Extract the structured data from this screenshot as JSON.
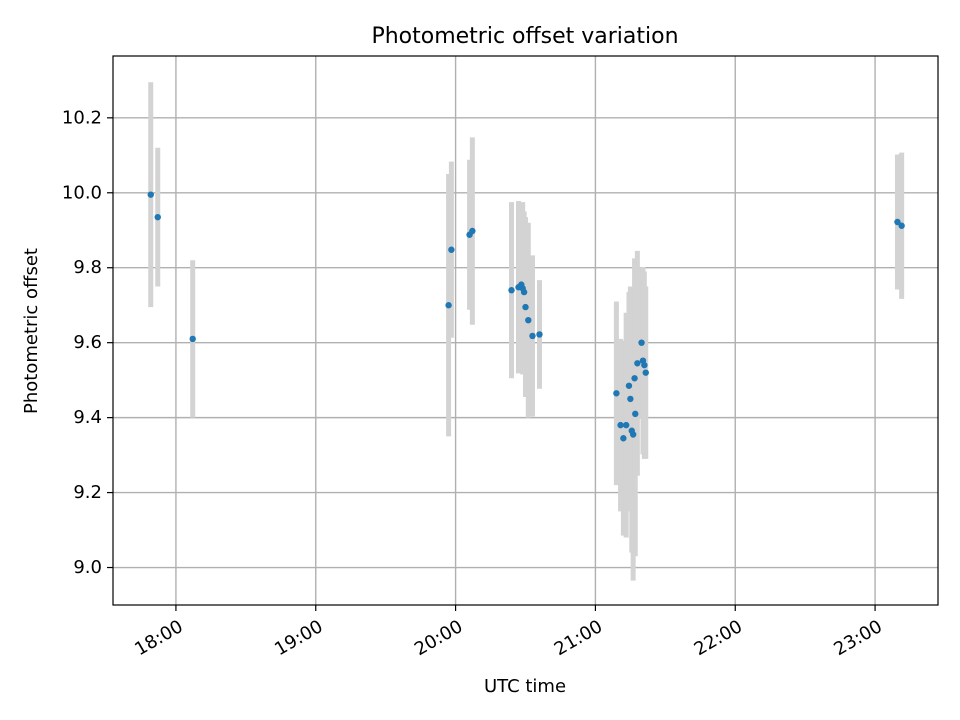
{
  "chart_data": {
    "type": "scatter",
    "title": "Photometric offset variation",
    "xlabel": "UTC time",
    "ylabel": "Photometric offset",
    "x_unit": "hours UTC",
    "xlim": [
      17.55,
      23.45
    ],
    "ylim": [
      8.9,
      10.365
    ],
    "x_ticks": [
      {
        "value": 18,
        "label": "18:00"
      },
      {
        "value": 19,
        "label": "19:00"
      },
      {
        "value": 20,
        "label": "20:00"
      },
      {
        "value": 21,
        "label": "21:00"
      },
      {
        "value": 22,
        "label": "22:00"
      },
      {
        "value": 23,
        "label": "23:00"
      }
    ],
    "y_ticks": [
      {
        "value": 9.0,
        "label": "9.0"
      },
      {
        "value": 9.2,
        "label": "9.2"
      },
      {
        "value": 9.4,
        "label": "9.4"
      },
      {
        "value": 9.6,
        "label": "9.6"
      },
      {
        "value": 9.8,
        "label": "9.8"
      },
      {
        "value": 10.0,
        "label": "10.0"
      },
      {
        "value": 10.2,
        "label": "10.2"
      }
    ],
    "grid": true,
    "colors": {
      "points": "#1f77b4",
      "errorbars": "#d3d3d3"
    },
    "series": [
      {
        "points": [
          {
            "x": 17.82,
            "y": 9.995,
            "err": 0.3
          },
          {
            "x": 17.87,
            "y": 9.935,
            "err": 0.185
          },
          {
            "x": 18.12,
            "y": 9.61,
            "err": 0.21
          },
          {
            "x": 19.95,
            "y": 9.7,
            "err": 0.35
          },
          {
            "x": 19.97,
            "y": 9.848,
            "err": 0.235
          },
          {
            "x": 20.1,
            "y": 9.888,
            "err": 0.2
          },
          {
            "x": 20.12,
            "y": 9.898,
            "err": 0.25
          },
          {
            "x": 20.4,
            "y": 9.74,
            "err": 0.235
          },
          {
            "x": 20.45,
            "y": 9.748,
            "err": 0.23
          },
          {
            "x": 20.47,
            "y": 9.755,
            "err": 0.215
          },
          {
            "x": 20.48,
            "y": 9.745,
            "err": 0.23
          },
          {
            "x": 20.49,
            "y": 9.735,
            "err": 0.215
          },
          {
            "x": 20.5,
            "y": 9.695,
            "err": 0.24
          },
          {
            "x": 20.52,
            "y": 9.66,
            "err": 0.26
          },
          {
            "x": 20.55,
            "y": 9.618,
            "err": 0.215
          },
          {
            "x": 20.6,
            "y": 9.622,
            "err": 0.145
          },
          {
            "x": 21.15,
            "y": 9.465,
            "err": 0.245
          },
          {
            "x": 21.18,
            "y": 9.38,
            "err": 0.23
          },
          {
            "x": 21.2,
            "y": 9.345,
            "err": 0.26
          },
          {
            "x": 21.22,
            "y": 9.38,
            "err": 0.3
          },
          {
            "x": 21.24,
            "y": 9.485,
            "err": 0.25
          },
          {
            "x": 21.25,
            "y": 9.45,
            "err": 0.3
          },
          {
            "x": 21.26,
            "y": 9.365,
            "err": 0.325
          },
          {
            "x": 21.27,
            "y": 9.355,
            "err": 0.39
          },
          {
            "x": 21.28,
            "y": 9.505,
            "err": 0.32
          },
          {
            "x": 21.285,
            "y": 9.41,
            "err": 0.38
          },
          {
            "x": 21.3,
            "y": 9.545,
            "err": 0.3
          },
          {
            "x": 21.33,
            "y": 9.6,
            "err": 0.2
          },
          {
            "x": 21.34,
            "y": 9.552,
            "err": 0.25
          },
          {
            "x": 21.35,
            "y": 9.54,
            "err": 0.25
          },
          {
            "x": 21.36,
            "y": 9.52,
            "err": 0.23
          },
          {
            "x": 23.16,
            "y": 9.922,
            "err": 0.18
          },
          {
            "x": 23.19,
            "y": 9.912,
            "err": 0.195
          }
        ]
      }
    ]
  }
}
